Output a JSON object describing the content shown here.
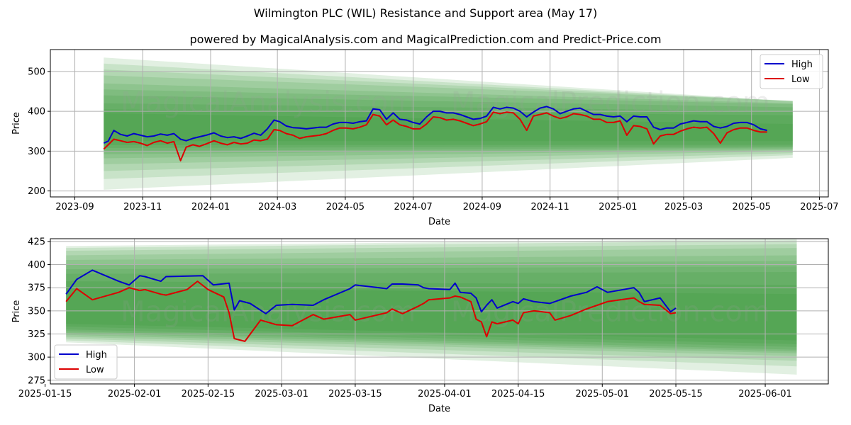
{
  "title": "Wilmington PLC (WIL) Resistance and Support area (May 17)",
  "subtitle": "powered by MagicalAnalysis.com and MagicalPrediction.com and Predict-Price.com",
  "watermarks": [
    "MagicalAnalysis.com",
    "MagicalPrediction.com"
  ],
  "colors": {
    "high": "#0000cc",
    "low": "#dd0000",
    "band": "#228b22"
  },
  "chart_data": [
    {
      "type": "line",
      "xlabel": "Date",
      "ylabel": "Price",
      "xlim": [
        "2023-08-10",
        "2025-07-09"
      ],
      "ylim": [
        185,
        555
      ],
      "xticks": [
        "2023-09",
        "2023-11",
        "2024-01",
        "2024-03",
        "2024-05",
        "2024-07",
        "2024-09",
        "2024-11",
        "2025-01",
        "2025-03",
        "2025-05",
        "2025-07"
      ],
      "yticks": [
        200,
        300,
        400,
        500
      ],
      "grid": true,
      "legend": "top-right",
      "band_x": [
        "2023-09-27",
        "2025-06-07"
      ],
      "bands": [
        [
          535,
          203,
          425,
          283
        ],
        [
          520,
          230,
          425,
          290
        ],
        [
          505,
          250,
          426,
          295
        ],
        [
          490,
          267,
          427,
          300
        ],
        [
          470,
          282,
          420,
          303
        ],
        [
          455,
          292,
          418,
          306
        ],
        [
          440,
          300,
          410,
          309
        ],
        [
          420,
          308,
          400,
          312
        ],
        [
          405,
          315,
          390,
          316
        ],
        [
          395,
          325,
          368,
          325
        ]
      ],
      "series": [
        {
          "name": "High",
          "x": [
            "2023-09-27",
            "2023-10-01",
            "2023-10-06",
            "2023-10-12",
            "2023-10-18",
            "2023-10-24",
            "2023-10-30",
            "2023-11-05",
            "2023-11-11",
            "2023-11-17",
            "2023-11-23",
            "2023-11-29",
            "2023-12-05",
            "2023-12-10",
            "2023-12-16",
            "2023-12-22",
            "2023-12-28",
            "2024-01-04",
            "2024-01-10",
            "2024-01-16",
            "2024-01-22",
            "2024-01-28",
            "2024-02-03",
            "2024-02-09",
            "2024-02-15",
            "2024-02-21",
            "2024-02-27",
            "2024-03-03",
            "2024-03-09",
            "2024-03-15",
            "2024-03-21",
            "2024-03-27",
            "2024-04-02",
            "2024-04-08",
            "2024-04-14",
            "2024-04-20",
            "2024-04-26",
            "2024-05-02",
            "2024-05-08",
            "2024-05-14",
            "2024-05-20",
            "2024-05-26",
            "2024-06-01",
            "2024-06-07",
            "2024-06-13",
            "2024-06-19",
            "2024-06-25",
            "2024-07-01",
            "2024-07-07",
            "2024-07-13",
            "2024-07-19",
            "2024-07-25",
            "2024-07-31",
            "2024-08-06",
            "2024-08-12",
            "2024-08-18",
            "2024-08-24",
            "2024-08-30",
            "2024-09-05",
            "2024-09-11",
            "2024-09-17",
            "2024-09-23",
            "2024-09-29",
            "2024-10-05",
            "2024-10-11",
            "2024-10-17",
            "2024-10-23",
            "2024-10-29",
            "2024-11-04",
            "2024-11-10",
            "2024-11-16",
            "2024-11-22",
            "2024-11-28",
            "2024-12-04",
            "2024-12-10",
            "2024-12-16",
            "2024-12-22",
            "2024-12-28",
            "2025-01-03",
            "2025-01-09",
            "2025-01-15",
            "2025-01-21",
            "2025-01-27",
            "2025-02-02",
            "2025-02-08",
            "2025-02-14",
            "2025-02-20",
            "2025-02-26",
            "2025-03-04",
            "2025-03-10",
            "2025-03-16",
            "2025-03-22",
            "2025-03-28",
            "2025-04-03",
            "2025-04-09",
            "2025-04-15",
            "2025-04-21",
            "2025-04-27",
            "2025-05-03",
            "2025-05-09",
            "2025-05-15"
          ],
          "y": [
            320,
            325,
            352,
            342,
            338,
            344,
            340,
            336,
            338,
            343,
            340,
            344,
            330,
            326,
            332,
            336,
            340,
            346,
            338,
            334,
            336,
            332,
            338,
            345,
            340,
            356,
            378,
            374,
            363,
            359,
            358,
            356,
            358,
            360,
            360,
            368,
            372,
            372,
            370,
            374,
            376,
            406,
            404,
            380,
            396,
            380,
            378,
            372,
            368,
            386,
            400,
            400,
            396,
            396,
            392,
            386,
            380,
            382,
            388,
            410,
            406,
            410,
            408,
            400,
            386,
            398,
            408,
            412,
            406,
            394,
            400,
            406,
            408,
            400,
            392,
            392,
            388,
            386,
            388,
            374,
            388,
            386,
            386,
            360,
            354,
            358,
            358,
            368,
            372,
            376,
            374,
            374,
            362,
            358,
            362,
            370,
            372,
            372,
            366,
            356,
            352
          ]
        },
        {
          "name": "Low",
          "x": [
            "2023-09-27",
            "2023-10-01",
            "2023-10-06",
            "2023-10-12",
            "2023-10-18",
            "2023-10-24",
            "2023-10-30",
            "2023-11-05",
            "2023-11-11",
            "2023-11-17",
            "2023-11-23",
            "2023-11-29",
            "2023-12-05",
            "2023-12-10",
            "2023-12-16",
            "2023-12-22",
            "2023-12-28",
            "2024-01-04",
            "2024-01-10",
            "2024-01-16",
            "2024-01-22",
            "2024-01-28",
            "2024-02-03",
            "2024-02-09",
            "2024-02-15",
            "2024-02-21",
            "2024-02-27",
            "2024-03-03",
            "2024-03-09",
            "2024-03-15",
            "2024-03-21",
            "2024-03-27",
            "2024-04-02",
            "2024-04-08",
            "2024-04-14",
            "2024-04-20",
            "2024-04-26",
            "2024-05-02",
            "2024-05-08",
            "2024-05-14",
            "2024-05-20",
            "2024-05-26",
            "2024-06-01",
            "2024-06-07",
            "2024-06-13",
            "2024-06-19",
            "2024-06-25",
            "2024-07-01",
            "2024-07-07",
            "2024-07-13",
            "2024-07-19",
            "2024-07-25",
            "2024-07-31",
            "2024-08-06",
            "2024-08-12",
            "2024-08-18",
            "2024-08-24",
            "2024-08-30",
            "2024-09-05",
            "2024-09-11",
            "2024-09-17",
            "2024-09-23",
            "2024-09-29",
            "2024-10-05",
            "2024-10-11",
            "2024-10-17",
            "2024-10-23",
            "2024-10-29",
            "2024-11-04",
            "2024-11-10",
            "2024-11-16",
            "2024-11-22",
            "2024-11-28",
            "2024-12-04",
            "2024-12-10",
            "2024-12-16",
            "2024-12-22",
            "2024-12-28",
            "2025-01-03",
            "2025-01-09",
            "2025-01-15",
            "2025-01-21",
            "2025-01-27",
            "2025-02-02",
            "2025-02-08",
            "2025-02-14",
            "2025-02-20",
            "2025-02-26",
            "2025-03-04",
            "2025-03-10",
            "2025-03-16",
            "2025-03-22",
            "2025-03-28",
            "2025-04-03",
            "2025-04-09",
            "2025-04-15",
            "2025-04-21",
            "2025-04-27",
            "2025-05-03",
            "2025-05-09",
            "2025-05-15"
          ],
          "y": [
            305,
            316,
            330,
            326,
            322,
            324,
            320,
            314,
            322,
            326,
            320,
            324,
            276,
            310,
            316,
            312,
            318,
            326,
            320,
            316,
            322,
            318,
            320,
            328,
            326,
            330,
            354,
            352,
            344,
            340,
            332,
            336,
            338,
            340,
            344,
            352,
            358,
            358,
            356,
            360,
            366,
            392,
            388,
            366,
            378,
            366,
            362,
            356,
            356,
            368,
            386,
            384,
            378,
            380,
            376,
            370,
            364,
            368,
            374,
            398,
            394,
            398,
            396,
            380,
            352,
            388,
            392,
            396,
            388,
            382,
            386,
            394,
            392,
            388,
            380,
            380,
            372,
            372,
            376,
            340,
            364,
            362,
            356,
            318,
            338,
            342,
            342,
            350,
            356,
            360,
            358,
            360,
            344,
            320,
            346,
            354,
            358,
            358,
            352,
            348,
            348
          ]
        }
      ]
    },
    {
      "type": "line",
      "xlabel": "Date",
      "ylabel": "Price",
      "xlim": [
        "2025-01-16",
        "2025-06-13"
      ],
      "ylim": [
        271,
        428
      ],
      "xticks": [
        "2025-01-15",
        "2025-02-01",
        "2025-02-15",
        "2025-03-01",
        "2025-03-15",
        "2025-04-01",
        "2025-04-15",
        "2025-05-01",
        "2025-05-15",
        "2025-06-01"
      ],
      "yticks": [
        275,
        300,
        325,
        350,
        375,
        400,
        425
      ],
      "grid": true,
      "legend": "bottom-left",
      "band_x": [
        "2025-01-19",
        "2025-06-07"
      ],
      "bands": [
        [
          420,
          316,
          428,
          281
        ],
        [
          418,
          318,
          426,
          290
        ],
        [
          415,
          320,
          422,
          296
        ],
        [
          410,
          322,
          418,
          301
        ],
        [
          405,
          324,
          410,
          304
        ],
        [
          400,
          326,
          404,
          306
        ],
        [
          395,
          328,
          398,
          308
        ],
        [
          390,
          330,
          392,
          311
        ],
        [
          382,
          333,
          378,
          314
        ],
        [
          375,
          336,
          368,
          318
        ]
      ],
      "series": [
        {
          "name": "High",
          "x": [
            "2025-01-19",
            "2025-01-21",
            "2025-01-24",
            "2025-01-29",
            "2025-01-31",
            "2025-02-02",
            "2025-02-03",
            "2025-02-06",
            "2025-02-07",
            "2025-02-14",
            "2025-02-16",
            "2025-02-19",
            "2025-02-20",
            "2025-02-21",
            "2025-02-23",
            "2025-02-26",
            "2025-02-28",
            "2025-03-03",
            "2025-03-07",
            "2025-03-09",
            "2025-03-14",
            "2025-03-15",
            "2025-03-21",
            "2025-03-22",
            "2025-03-24",
            "2025-03-27",
            "2025-03-28",
            "2025-03-29",
            "2025-04-02",
            "2025-04-03",
            "2025-04-04",
            "2025-04-06",
            "2025-04-07",
            "2025-04-08",
            "2025-04-09",
            "2025-04-10",
            "2025-04-11",
            "2025-04-14",
            "2025-04-15",
            "2025-04-16",
            "2025-04-18",
            "2025-04-21",
            "2025-04-22",
            "2025-04-25",
            "2025-04-28",
            "2025-04-30",
            "2025-05-02",
            "2025-05-07",
            "2025-05-08",
            "2025-05-09",
            "2025-05-12",
            "2025-05-14",
            "2025-05-15"
          ],
          "y": [
            368,
            384,
            394,
            382,
            378,
            388,
            387,
            382,
            387,
            388,
            378,
            380,
            351,
            361,
            358,
            347,
            356,
            357,
            356,
            362,
            374,
            378,
            374,
            379,
            379,
            378,
            375,
            374,
            373,
            380,
            370,
            369,
            364,
            349,
            356,
            362,
            353,
            360,
            358,
            363,
            360,
            358,
            360,
            366,
            370,
            376,
            370,
            375,
            370,
            360,
            364,
            349,
            353
          ]
        },
        {
          "name": "Low",
          "x": [
            "2025-01-19",
            "2025-01-21",
            "2025-01-24",
            "2025-01-29",
            "2025-01-31",
            "2025-02-02",
            "2025-02-03",
            "2025-02-06",
            "2025-02-07",
            "2025-02-11",
            "2025-02-13",
            "2025-02-15",
            "2025-02-18",
            "2025-02-19",
            "2025-02-20",
            "2025-02-22",
            "2025-02-25",
            "2025-02-28",
            "2025-03-03",
            "2025-03-07",
            "2025-03-09",
            "2025-03-14",
            "2025-03-15",
            "2025-03-21",
            "2025-03-22",
            "2025-03-24",
            "2025-03-27",
            "2025-03-28",
            "2025-03-29",
            "2025-04-02",
            "2025-04-03",
            "2025-04-04",
            "2025-04-06",
            "2025-04-07",
            "2025-04-08",
            "2025-04-09",
            "2025-04-10",
            "2025-04-11",
            "2025-04-14",
            "2025-04-15",
            "2025-04-16",
            "2025-04-18",
            "2025-04-21",
            "2025-04-22",
            "2025-04-25",
            "2025-04-28",
            "2025-04-30",
            "2025-05-02",
            "2025-05-07",
            "2025-05-08",
            "2025-05-09",
            "2025-05-12",
            "2025-05-14",
            "2025-05-15"
          ],
          "y": [
            360,
            374,
            362,
            370,
            375,
            372,
            373,
            368,
            367,
            373,
            382,
            373,
            365,
            348,
            320,
            317,
            340,
            335,
            334,
            346,
            341,
            346,
            340,
            348,
            352,
            347,
            355,
            358,
            362,
            364,
            366,
            365,
            360,
            341,
            338,
            322,
            338,
            336,
            340,
            336,
            348,
            350,
            348,
            340,
            345,
            352,
            356,
            360,
            364,
            360,
            357,
            356,
            347,
            348
          ]
        }
      ]
    }
  ]
}
